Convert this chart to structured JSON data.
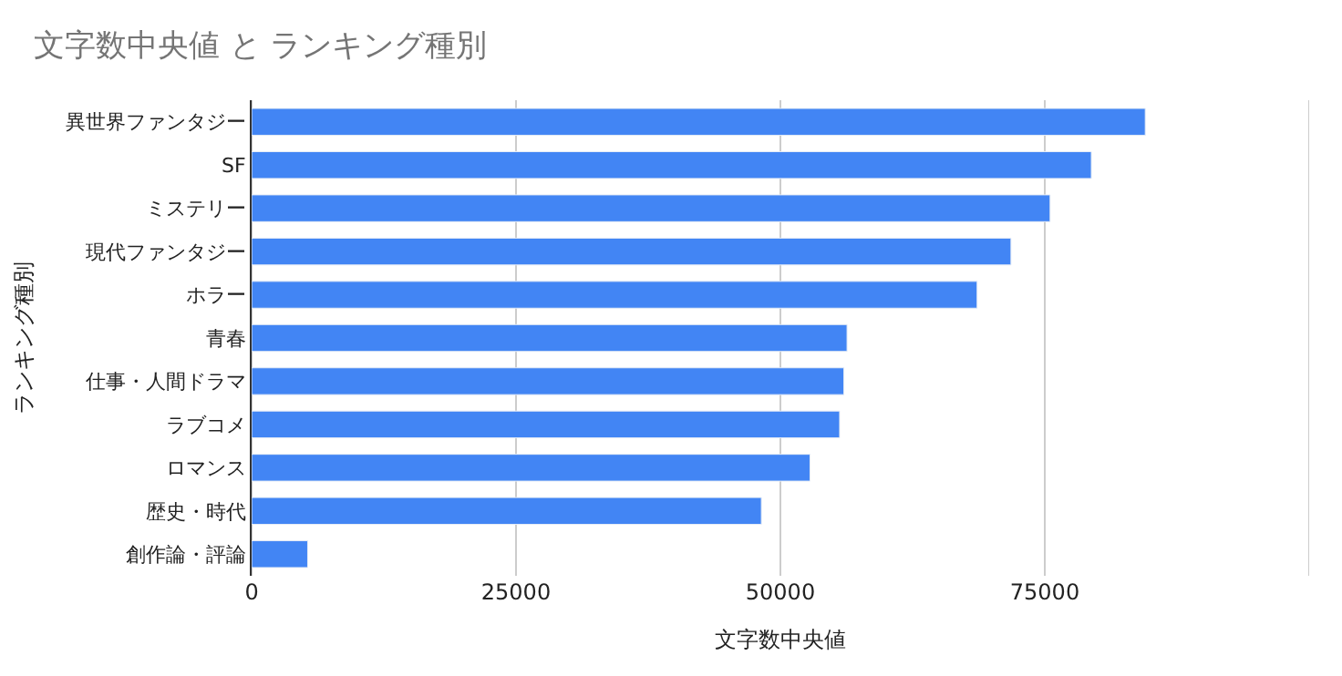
{
  "chart_data": {
    "type": "bar",
    "orientation": "horizontal",
    "title": "文字数中央値 と ランキング種別",
    "xlabel": "文字数中央値",
    "ylabel": "ランキング種別",
    "categories": [
      "異世界ファンタジー",
      "SF",
      "ミステリー",
      "現代ファンタジー",
      "ホラー",
      "青春",
      "仕事・人間ドラマ",
      "ラブコメ",
      "ロマンス",
      "歴史・時代",
      "創作論・評論"
    ],
    "values": [
      84500,
      79400,
      75500,
      71800,
      68600,
      56300,
      56000,
      55600,
      52800,
      48200,
      5300
    ],
    "color": "#4285f4",
    "xlim": [
      0,
      100000
    ],
    "xticks": [
      0,
      25000,
      50000,
      75000,
      {
        "value": 100000,
        "label": null
      }
    ],
    "grid": "x",
    "legend": false
  }
}
